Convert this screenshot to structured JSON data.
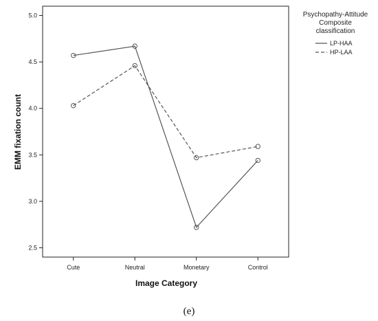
{
  "chart_data": {
    "type": "line",
    "categories": [
      "Cute",
      "Neutral",
      "Monetary",
      "Control"
    ],
    "series": [
      {
        "name": "LP-HAA",
        "values": [
          4.57,
          4.67,
          2.72,
          3.44
        ],
        "dash": "solid"
      },
      {
        "name": "HP-LAA",
        "values": [
          4.03,
          4.46,
          3.47,
          3.59
        ],
        "dash": "dashed"
      }
    ],
    "xlabel": "Image Category",
    "ylabel": "EMM fixation count",
    "ylim": [
      2.4,
      5.1
    ],
    "yticks": [
      "2.5",
      "3.0",
      "3.5",
      "4.0",
      "4.5",
      "5.0"
    ],
    "legend": {
      "title_lines": [
        "Psychopathy-Attitude",
        "Composite",
        "classification"
      ],
      "placement": "right"
    },
    "grid": false,
    "line_color": "#555555"
  },
  "panel_label": "(e)"
}
